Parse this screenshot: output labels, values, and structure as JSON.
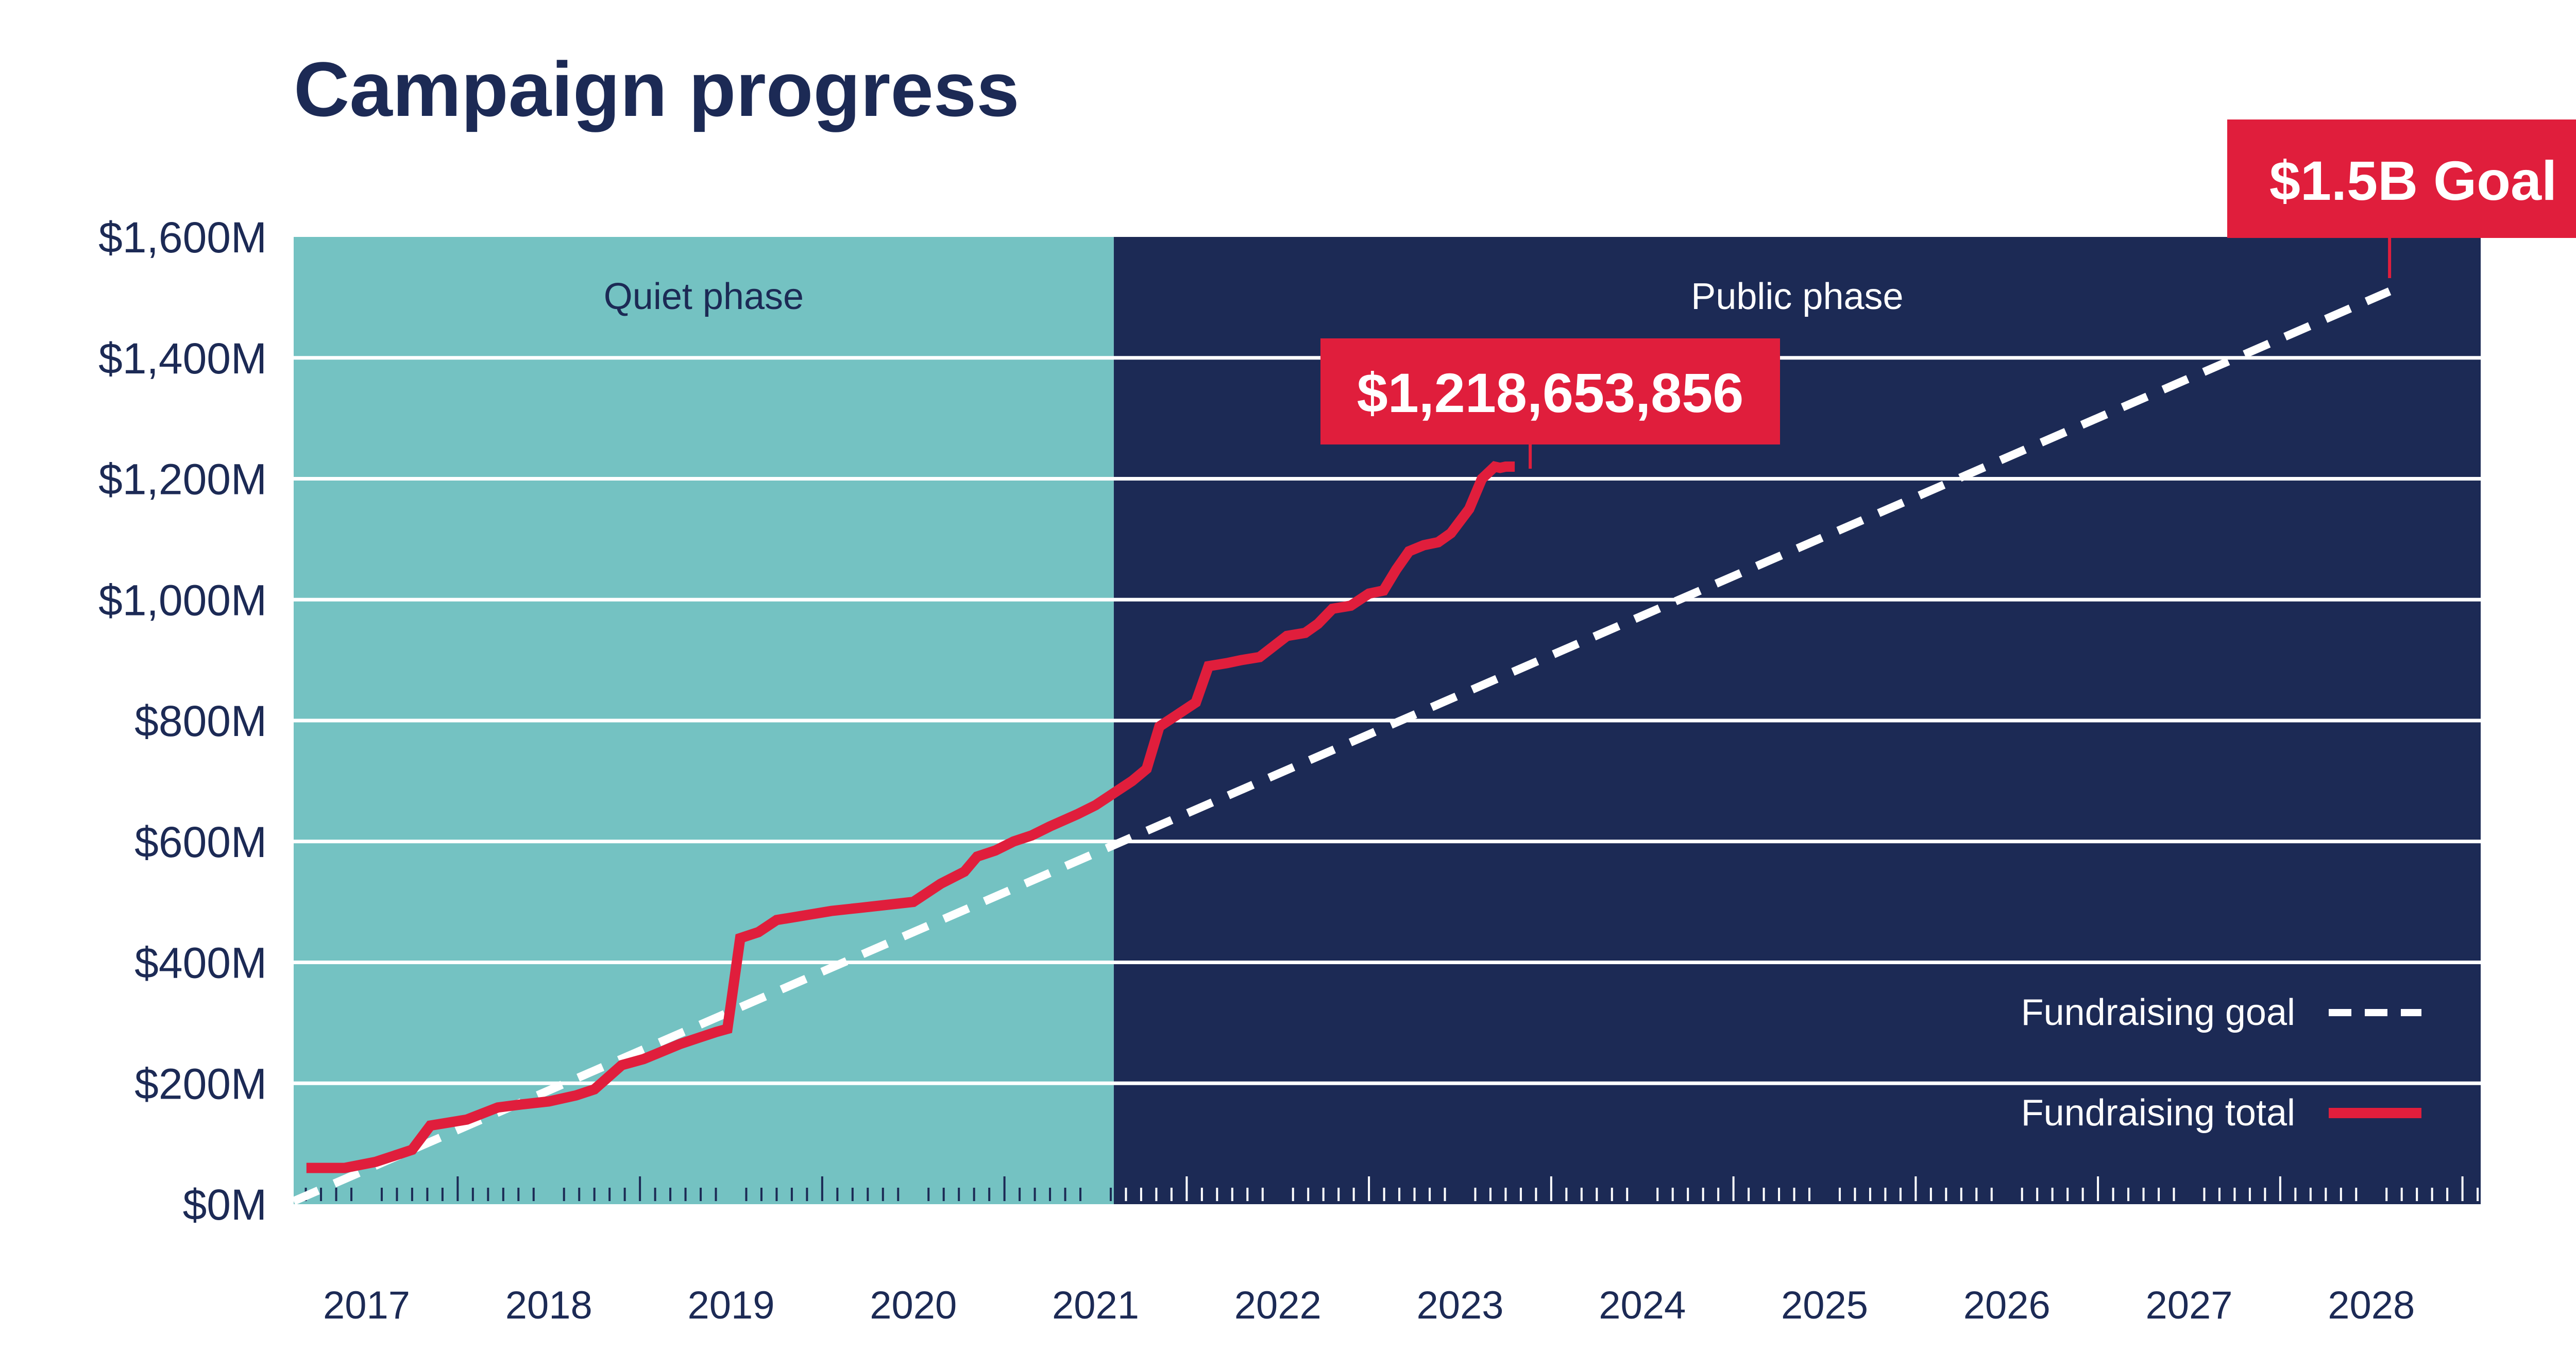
{
  "colors": {
    "title": "#1c2a55",
    "quiet_phase": "#74c2c2",
    "public_phase": "#1c2a55",
    "gridline": "#ffffff",
    "total_line": "#e01e3c",
    "goal_line": "#ffffff",
    "callout_bg": "#e01e3c",
    "callout_text": "#ffffff",
    "axis_text": "#1c2a55"
  },
  "chart_data": {
    "type": "line",
    "title": "Campaign progress",
    "xlabel": "",
    "ylabel": "",
    "xlim": [
      2016.6,
      2028.6
    ],
    "ylim": [
      0,
      1600
    ],
    "y_ticks": [
      0,
      200,
      400,
      600,
      800,
      1000,
      1200,
      1400,
      1600
    ],
    "y_tick_labels": [
      "$0M",
      "$200M",
      "$400M",
      "$600M",
      "$800M",
      "$1,000M",
      "$1,200M",
      "$1,400M",
      "$1,600M"
    ],
    "x_ticks": [
      2017,
      2018,
      2019,
      2020,
      2021,
      2022,
      2023,
      2024,
      2025,
      2026,
      2027,
      2028
    ],
    "x_tick_labels": [
      "2017",
      "2018",
      "2019",
      "2020",
      "2021",
      "2022",
      "2023",
      "2024",
      "2025",
      "2026",
      "2027",
      "2028"
    ],
    "phases": [
      {
        "label": "Quiet phase",
        "start": 2016.6,
        "end": 2021.1
      },
      {
        "label": "Public phase",
        "start": 2021.1,
        "end": 2028.6
      }
    ],
    "series": [
      {
        "name": "Fundraising goal",
        "style": "dashed",
        "x": [
          2016.6,
          2028.1
        ],
        "values": [
          5,
          1510
        ]
      },
      {
        "name": "Fundraising total",
        "style": "solid",
        "x": [
          2016.67,
          2016.88,
          2017.05,
          2017.15,
          2017.25,
          2017.35,
          2017.55,
          2017.72,
          2017.85,
          2018.0,
          2018.15,
          2018.25,
          2018.4,
          2018.52,
          2018.6,
          2018.72,
          2018.82,
          2018.92,
          2018.98,
          2019.05,
          2019.15,
          2019.25,
          2019.35,
          2019.45,
          2019.55,
          2019.7,
          2019.85,
          2020.0,
          2020.15,
          2020.28,
          2020.35,
          2020.45,
          2020.55,
          2020.65,
          2020.75,
          2020.9,
          2021.0,
          2021.1,
          2021.2,
          2021.28,
          2021.35,
          2021.45,
          2021.55,
          2021.62,
          2021.72,
          2021.8,
          2021.9,
          2022.05,
          2022.15,
          2022.22,
          2022.3,
          2022.4,
          2022.5,
          2022.58,
          2022.65,
          2022.72,
          2022.8,
          2022.88,
          2022.95,
          2023.05,
          2023.12,
          2023.19,
          2023.22,
          2023.25,
          2023.3
        ],
        "values": [
          60,
          60,
          70,
          80,
          90,
          130,
          140,
          160,
          165,
          170,
          180,
          190,
          230,
          240,
          250,
          265,
          275,
          285,
          290,
          440,
          450,
          470,
          475,
          480,
          485,
          490,
          495,
          500,
          530,
          550,
          575,
          585,
          600,
          610,
          625,
          645,
          660,
          680,
          700,
          720,
          790,
          810,
          830,
          890,
          895,
          900,
          905,
          940,
          945,
          960,
          985,
          990,
          1010,
          1015,
          1050,
          1080,
          1090,
          1095,
          1110,
          1150,
          1200,
          1220,
          1218,
          1220,
          1220
        ]
      }
    ],
    "annotations": [
      {
        "text": "$1,218,653,856",
        "x": 2023.3,
        "y": 1218.65
      },
      {
        "text": "$1.5B Goal",
        "x": 2028.1,
        "y": 1500
      }
    ],
    "legend": {
      "position": "bottom-right",
      "entries": [
        {
          "label": "Fundraising goal",
          "style": "dashed"
        },
        {
          "label": "Fundraising total",
          "style": "solid"
        }
      ]
    }
  }
}
